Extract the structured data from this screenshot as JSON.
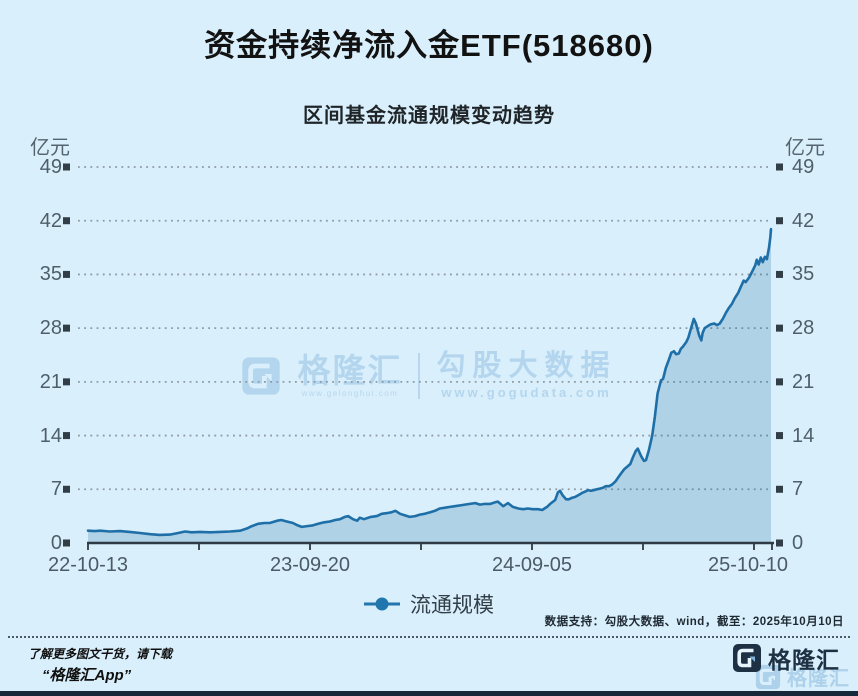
{
  "page": {
    "title": "资金持续净流入金ETF(518680)",
    "data_note": "数据支持：勾股大数据、wind，截至：2025年10月10日",
    "watermark": {
      "brand": "格隆汇",
      "brand_url": "www.gelonghui.com",
      "partner": "勾股大数据",
      "partner_url": "www.gogudata.com"
    },
    "footer": {
      "promo_line1": "了解更多图文干货，请下载",
      "promo_line2": "“格隆汇App”",
      "brand": "格隆汇"
    }
  },
  "chart_data": {
    "type": "area",
    "title": "区间基金流通规模变动趋势",
    "unit_label": "亿元",
    "ylabel": "亿元",
    "ylim": [
      0,
      49
    ],
    "yticks": [
      0,
      7,
      14,
      21,
      28,
      35,
      42,
      49
    ],
    "grid": "dotted-horizontal",
    "legend_position": "bottom-center",
    "xtick_labels": [
      "22-10-13",
      "23-09-20",
      "24-09-05",
      "25-10-10"
    ],
    "x_range_dates": [
      "2022-10-13",
      "2025-10-10"
    ],
    "colors": {
      "line": "#1e6fa7",
      "area": "rgba(31,108,158,0.22)",
      "grid": "#8d9aa3",
      "axis": "#2e3a44",
      "tick_square": "#323e47"
    },
    "series": [
      {
        "name": "流通规模",
        "color": "#2176ad",
        "points": [
          [
            0,
            1.6
          ],
          [
            0.01,
            1.55
          ],
          [
            0.018,
            1.6
          ],
          [
            0.032,
            1.5
          ],
          [
            0.047,
            1.55
          ],
          [
            0.061,
            1.45
          ],
          [
            0.076,
            1.3
          ],
          [
            0.091,
            1.15
          ],
          [
            0.105,
            1.05
          ],
          [
            0.12,
            1.1
          ],
          [
            0.132,
            1.3
          ],
          [
            0.142,
            1.5
          ],
          [
            0.152,
            1.4
          ],
          [
            0.164,
            1.45
          ],
          [
            0.179,
            1.4
          ],
          [
            0.193,
            1.45
          ],
          [
            0.208,
            1.5
          ],
          [
            0.223,
            1.6
          ],
          [
            0.233,
            1.9
          ],
          [
            0.24,
            2.2
          ],
          [
            0.249,
            2.5
          ],
          [
            0.258,
            2.6
          ],
          [
            0.266,
            2.6
          ],
          [
            0.277,
            2.9
          ],
          [
            0.283,
            3.0
          ],
          [
            0.291,
            2.8
          ],
          [
            0.3,
            2.6
          ],
          [
            0.307,
            2.3
          ],
          [
            0.313,
            2.1
          ],
          [
            0.321,
            2.2
          ],
          [
            0.329,
            2.3
          ],
          [
            0.337,
            2.5
          ],
          [
            0.346,
            2.7
          ],
          [
            0.354,
            2.8
          ],
          [
            0.362,
            3.0
          ],
          [
            0.369,
            3.1
          ],
          [
            0.376,
            3.4
          ],
          [
            0.381,
            3.5
          ],
          [
            0.388,
            3.1
          ],
          [
            0.394,
            2.9
          ],
          [
            0.398,
            3.3
          ],
          [
            0.404,
            3.1
          ],
          [
            0.414,
            3.4
          ],
          [
            0.423,
            3.5
          ],
          [
            0.43,
            3.8
          ],
          [
            0.438,
            3.9
          ],
          [
            0.444,
            4.0
          ],
          [
            0.45,
            4.2
          ],
          [
            0.457,
            3.8
          ],
          [
            0.464,
            3.6
          ],
          [
            0.471,
            3.4
          ],
          [
            0.479,
            3.5
          ],
          [
            0.486,
            3.7
          ],
          [
            0.493,
            3.8
          ],
          [
            0.501,
            4.0
          ],
          [
            0.508,
            4.2
          ],
          [
            0.515,
            4.5
          ],
          [
            0.523,
            4.6
          ],
          [
            0.53,
            4.7
          ],
          [
            0.537,
            4.8
          ],
          [
            0.545,
            4.9
          ],
          [
            0.552,
            5.0
          ],
          [
            0.559,
            5.1
          ],
          [
            0.567,
            5.2
          ],
          [
            0.574,
            5.0
          ],
          [
            0.581,
            5.1
          ],
          [
            0.589,
            5.1
          ],
          [
            0.596,
            5.3
          ],
          [
            0.6,
            5.4
          ],
          [
            0.608,
            4.8
          ],
          [
            0.615,
            5.2
          ],
          [
            0.622,
            4.7
          ],
          [
            0.63,
            4.5
          ],
          [
            0.637,
            4.4
          ],
          [
            0.644,
            4.5
          ],
          [
            0.651,
            4.4
          ],
          [
            0.659,
            4.4
          ],
          [
            0.665,
            4.3
          ],
          [
            0.672,
            4.7
          ],
          [
            0.678,
            5.2
          ],
          [
            0.684,
            5.6
          ],
          [
            0.688,
            6.6
          ],
          [
            0.691,
            6.8
          ],
          [
            0.695,
            6.2
          ],
          [
            0.7,
            5.7
          ],
          [
            0.704,
            5.7
          ],
          [
            0.709,
            5.9
          ],
          [
            0.713,
            6.0
          ],
          [
            0.719,
            6.3
          ],
          [
            0.723,
            6.5
          ],
          [
            0.728,
            6.7
          ],
          [
            0.732,
            6.9
          ],
          [
            0.736,
            6.8
          ],
          [
            0.741,
            6.9
          ],
          [
            0.745,
            7.0
          ],
          [
            0.75,
            7.1
          ],
          [
            0.754,
            7.2
          ],
          [
            0.758,
            7.4
          ],
          [
            0.763,
            7.4
          ],
          [
            0.767,
            7.6
          ],
          [
            0.772,
            8.0
          ],
          [
            0.776,
            8.5
          ],
          [
            0.78,
            9.0
          ],
          [
            0.785,
            9.6
          ],
          [
            0.789,
            9.9
          ],
          [
            0.794,
            10.3
          ],
          [
            0.798,
            11.2
          ],
          [
            0.802,
            12.0
          ],
          [
            0.805,
            12.3
          ],
          [
            0.81,
            11.3
          ],
          [
            0.814,
            10.7
          ],
          [
            0.817,
            10.8
          ],
          [
            0.821,
            12.0
          ],
          [
            0.826,
            14.0
          ],
          [
            0.83,
            16.5
          ],
          [
            0.834,
            19.5
          ],
          [
            0.839,
            21.2
          ],
          [
            0.842,
            21.4
          ],
          [
            0.846,
            22.8
          ],
          [
            0.851,
            24.0
          ],
          [
            0.854,
            24.8
          ],
          [
            0.858,
            25.0
          ],
          [
            0.861,
            24.6
          ],
          [
            0.865,
            24.7
          ],
          [
            0.868,
            25.3
          ],
          [
            0.871,
            25.6
          ],
          [
            0.876,
            26.2
          ],
          [
            0.879,
            26.8
          ],
          [
            0.883,
            28.0
          ],
          [
            0.887,
            29.2
          ],
          [
            0.89,
            28.6
          ],
          [
            0.895,
            27.0
          ],
          [
            0.898,
            26.4
          ],
          [
            0.9,
            27.4
          ],
          [
            0.903,
            28.0
          ],
          [
            0.908,
            28.3
          ],
          [
            0.912,
            28.5
          ],
          [
            0.917,
            28.6
          ],
          [
            0.921,
            28.4
          ],
          [
            0.925,
            28.6
          ],
          [
            0.93,
            29.3
          ],
          [
            0.934,
            30.0
          ],
          [
            0.938,
            30.6
          ],
          [
            0.943,
            31.2
          ],
          [
            0.947,
            31.9
          ],
          [
            0.952,
            32.6
          ],
          [
            0.956,
            33.4
          ],
          [
            0.96,
            34.2
          ],
          [
            0.963,
            34.0
          ],
          [
            0.968,
            34.6
          ],
          [
            0.972,
            35.3
          ],
          [
            0.977,
            36.2
          ],
          [
            0.979,
            36.9
          ],
          [
            0.982,
            36.3
          ],
          [
            0.985,
            37.2
          ],
          [
            0.988,
            36.6
          ],
          [
            0.991,
            37.3
          ],
          [
            0.994,
            37.0
          ],
          [
            0.997,
            38.5
          ],
          [
            0.999,
            39.8
          ],
          [
            1,
            40.9
          ]
        ]
      }
    ]
  }
}
